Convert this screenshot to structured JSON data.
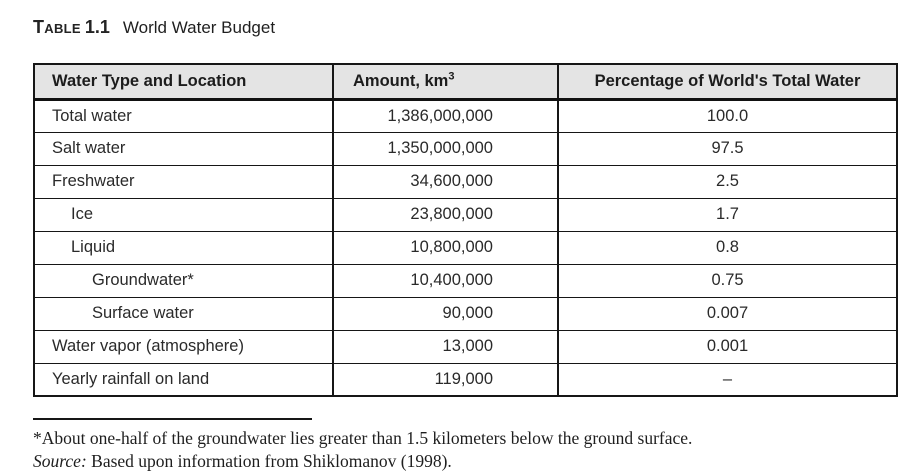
{
  "title": {
    "label": "Table",
    "number": "1.1",
    "text": "World Water Budget"
  },
  "table": {
    "columns": [
      {
        "label": "Water Type and Location"
      },
      {
        "label": "Amount, km",
        "superscript": "3"
      },
      {
        "label": "Percentage of World's Total Water"
      }
    ],
    "rows": [
      {
        "type": "Total water",
        "indent": 0,
        "amount": "1,386,000,000",
        "percentage": "100.0"
      },
      {
        "type": "Salt water",
        "indent": 0,
        "amount": "1,350,000,000",
        "percentage": "97.5"
      },
      {
        "type": "Freshwater",
        "indent": 0,
        "amount": "34,600,000",
        "percentage": "2.5"
      },
      {
        "type": "Ice",
        "indent": 1,
        "amount": "23,800,000",
        "percentage": "1.7"
      },
      {
        "type": "Liquid",
        "indent": 1,
        "amount": "10,800,000",
        "percentage": "0.8"
      },
      {
        "type": "Groundwater*",
        "indent": 2,
        "amount": "10,400,000",
        "percentage": "0.75"
      },
      {
        "type": "Surface water",
        "indent": 2,
        "amount": "90,000",
        "percentage": "0.007"
      },
      {
        "type": "Water vapor (atmosphere)",
        "indent": 0,
        "amount": "13,000",
        "percentage": "0.001"
      },
      {
        "type": "Yearly rainfall on land",
        "indent": 0,
        "amount": "119,000",
        "percentage": "–"
      }
    ]
  },
  "footnote": {
    "note": "*About one-half of the groundwater lies greater than 1.5 kilometers below the ground surface.",
    "source_label": "Source:",
    "source_text": " Based upon information from Shiklomanov (1998)."
  },
  "colors": {
    "header_bg": "#e4e4e4",
    "border": "#161616",
    "text": "#232323",
    "background": "#ffffff"
  }
}
